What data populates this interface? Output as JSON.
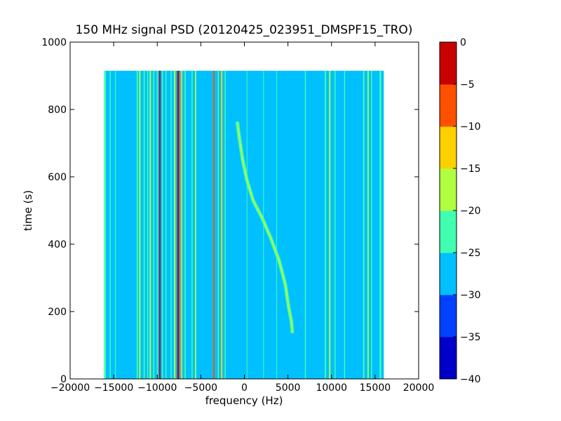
{
  "chart_data": {
    "type": "heatmap",
    "title": "150 MHz signal PSD (20120425_023951_DMSPF15_TRO)",
    "xlabel": "frequency (Hz)",
    "ylabel": "time (s)",
    "xlim": [
      -20000,
      20000
    ],
    "ylim": [
      0,
      1000
    ],
    "x_ticks": [
      -20000,
      -15000,
      -10000,
      -5000,
      0,
      5000,
      10000,
      15000,
      20000
    ],
    "x_tick_labels": [
      "−20000",
      "−15000",
      "−10000",
      "−5000",
      "0",
      "5000",
      "10000",
      "15000",
      "20000"
    ],
    "y_ticks": [
      0,
      200,
      400,
      600,
      800,
      1000
    ],
    "y_tick_labels": [
      "0",
      "200",
      "400",
      "600",
      "800",
      "1000"
    ],
    "data_extent": {
      "x": [
        -16000,
        16000
      ],
      "y": [
        0,
        915
      ]
    },
    "background_level": -27.5,
    "colorbar": {
      "levels": [
        -40,
        -35,
        -30,
        -25,
        -20,
        -15,
        -10,
        -5,
        0
      ],
      "tick_labels": [
        "−40",
        "−35",
        "−30",
        "−25",
        "−20",
        "−15",
        "−10",
        "−5",
        "0"
      ],
      "colors": [
        "#0000c8",
        "#0040ff",
        "#00c0ff",
        "#40ffb0",
        "#b0ff40",
        "#ffd000",
        "#ff5000",
        "#c80000"
      ]
    },
    "vertical_lines": [
      {
        "f": -16000,
        "level": -22.5,
        "w": 220
      },
      {
        "f": -15400,
        "level": -22.5,
        "w": 120
      },
      {
        "f": -14800,
        "level": -22.5,
        "w": 100
      },
      {
        "f": -12300,
        "level": -22.5,
        "w": 150
      },
      {
        "f": -12000,
        "level": -17.5,
        "w": 160
      },
      {
        "f": -11500,
        "level": -22.5,
        "w": 140
      },
      {
        "f": -11100,
        "level": -22.5,
        "w": 120
      },
      {
        "f": -10800,
        "level": -17.5,
        "w": 160
      },
      {
        "f": -10400,
        "level": -22.5,
        "w": 140
      },
      {
        "f": -10000,
        "level": -22.5,
        "w": 120
      },
      {
        "f": -9700,
        "level": -2.5,
        "w": 150
      },
      {
        "f": -9400,
        "level": -22.5,
        "w": 120
      },
      {
        "f": -9000,
        "level": -22.5,
        "w": 120
      },
      {
        "f": -8400,
        "level": -22.5,
        "w": 120
      },
      {
        "f": -8000,
        "level": -17.5,
        "w": 160
      },
      {
        "f": -7600,
        "level": -2.5,
        "w": 220
      },
      {
        "f": -7200,
        "level": -12.5,
        "w": 160
      },
      {
        "f": -6800,
        "level": -22.5,
        "w": 140
      },
      {
        "f": -6000,
        "level": -22.5,
        "w": 120
      },
      {
        "f": -5600,
        "level": -17.5,
        "w": 140
      },
      {
        "f": -3500,
        "level": -7.5,
        "w": 160
      },
      {
        "f": -3000,
        "level": -22.5,
        "w": 120
      },
      {
        "f": -2600,
        "level": -12.5,
        "w": 160
      },
      {
        "f": -2200,
        "level": -22.5,
        "w": 120
      },
      {
        "f": 300,
        "level": -22.5,
        "w": 80
      },
      {
        "f": 2200,
        "level": -22.5,
        "w": 80
      },
      {
        "f": 3700,
        "level": -22.5,
        "w": 80
      },
      {
        "f": 7000,
        "level": -22.5,
        "w": 120
      },
      {
        "f": 9300,
        "level": -22.5,
        "w": 150
      },
      {
        "f": 9800,
        "level": -17.5,
        "w": 160
      },
      {
        "f": 10400,
        "level": -22.5,
        "w": 120
      },
      {
        "f": 11500,
        "level": -22.5,
        "w": 120
      },
      {
        "f": 13700,
        "level": -22.5,
        "w": 150
      },
      {
        "f": 14200,
        "level": -17.5,
        "w": 140
      },
      {
        "f": 14600,
        "level": -22.5,
        "w": 120
      },
      {
        "f": 15600,
        "level": -22.5,
        "w": 200
      }
    ],
    "curve": {
      "name": "doppler",
      "level": -17.5,
      "points": [
        {
          "f": -800,
          "t": 760
        },
        {
          "f": -600,
          "t": 720
        },
        {
          "f": -200,
          "t": 650
        },
        {
          "f": 300,
          "t": 590
        },
        {
          "f": 1000,
          "t": 530
        },
        {
          "f": 2000,
          "t": 480
        },
        {
          "f": 3000,
          "t": 420
        },
        {
          "f": 4000,
          "t": 350
        },
        {
          "f": 4700,
          "t": 280
        },
        {
          "f": 5100,
          "t": 210
        },
        {
          "f": 5400,
          "t": 170
        },
        {
          "f": 5500,
          "t": 140
        }
      ]
    }
  }
}
